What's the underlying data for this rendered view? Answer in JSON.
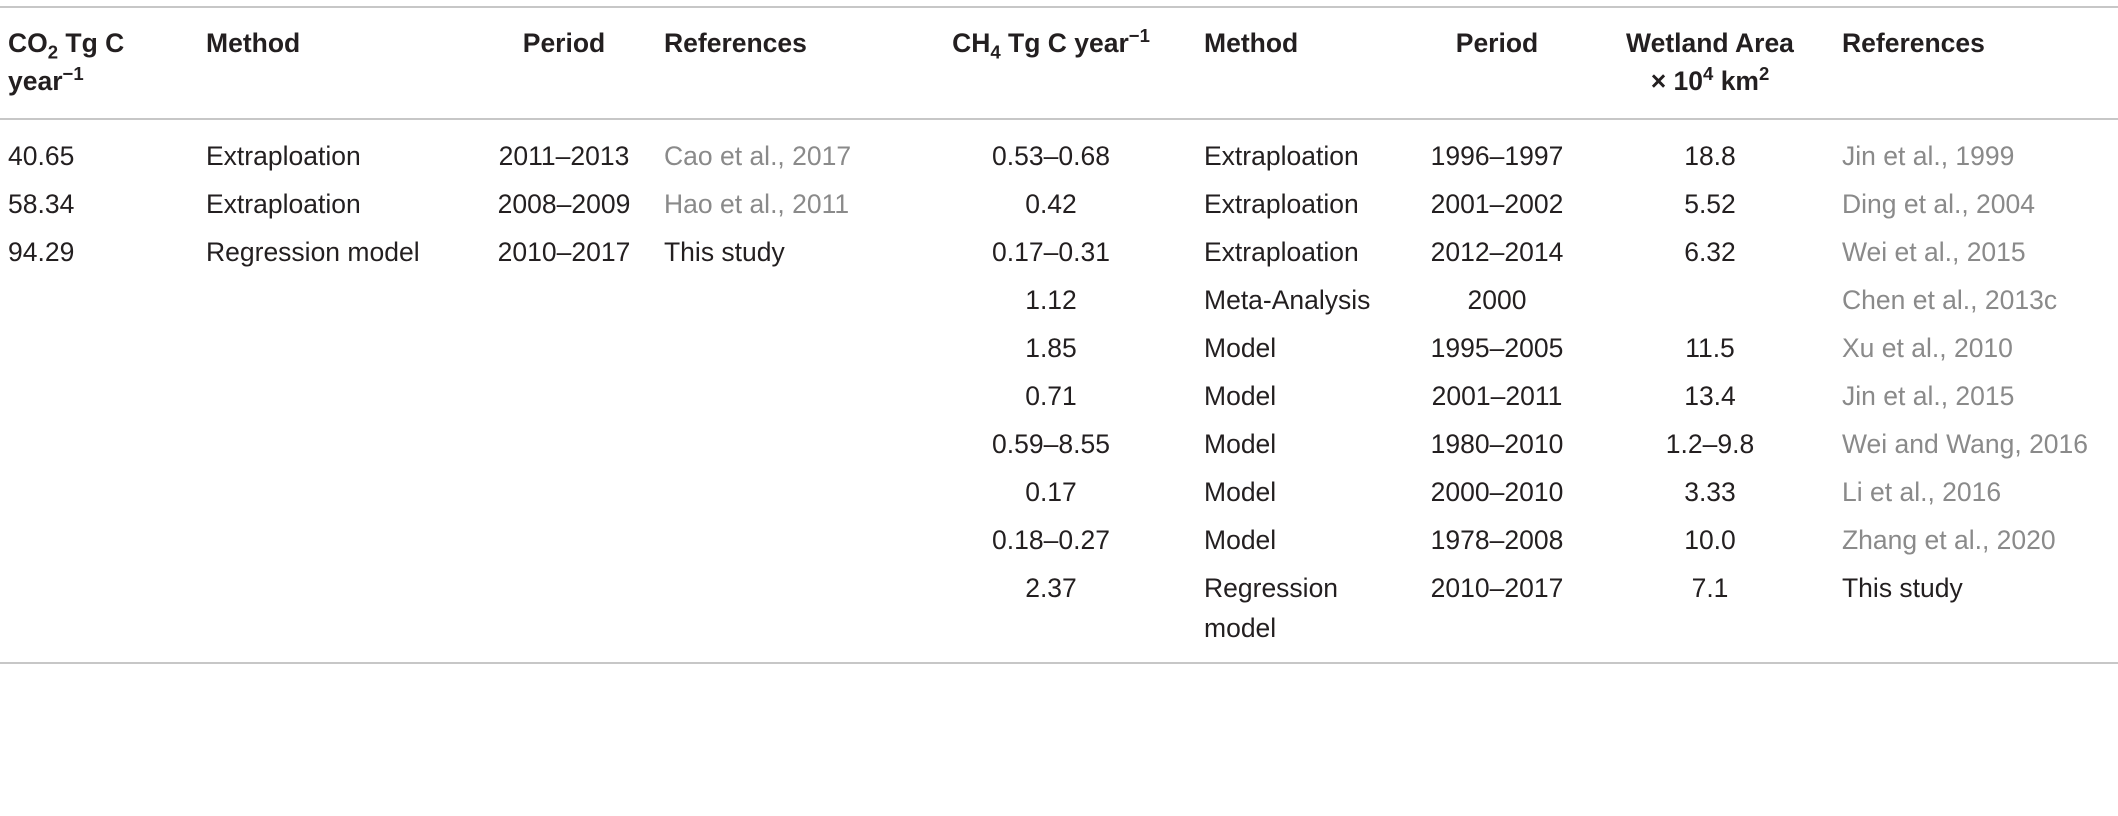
{
  "headers": {
    "co2": {
      "prefix": "CO",
      "sub": "2",
      "mid": " Tg C year",
      "sup": "−1"
    },
    "method1": "Method",
    "period1": "Period",
    "refs1": "References",
    "ch4": {
      "prefix": "CH",
      "sub": "4",
      "mid": " Tg C year",
      "sup": "−1"
    },
    "method2": "Method",
    "period2": "Period",
    "area": {
      "line1": "Wetland Area",
      "line2a": "× 10",
      "sup1": "4",
      "line2b": " km",
      "sup2": "2"
    },
    "refs2": "References"
  },
  "rows": [
    {
      "co2": "40.65",
      "method1": "Extraploation",
      "period1": "2011–2013",
      "refs1": "Cao et al., 2017",
      "ch4": "0.53–0.68",
      "method2": "Extraploation",
      "period2": "1996–1997",
      "area": "18.8",
      "refs2": "Jin et al., 1999"
    },
    {
      "co2": "58.34",
      "method1": "Extraploation",
      "period1": "2008–2009",
      "refs1": "Hao et al., 2011",
      "ch4": "0.42",
      "method2": "Extraploation",
      "period2": "2001–2002",
      "area": "5.52",
      "refs2": "Ding et al., 2004"
    },
    {
      "co2": "94.29",
      "method1": "Regression model",
      "period1": "2010–2017",
      "refs1": "This study",
      "ch4": "0.17–0.31",
      "method2": "Extraploation",
      "period2": "2012–2014",
      "area": "6.32",
      "refs2": "Wei et al., 2015"
    },
    {
      "co2": "",
      "method1": "",
      "period1": "",
      "refs1": "",
      "ch4": "1.12",
      "method2": "Meta-Analysis",
      "period2": "2000",
      "area": "",
      "refs2": "Chen et al., 2013c"
    },
    {
      "co2": "",
      "method1": "",
      "period1": "",
      "refs1": "",
      "ch4": "1.85",
      "method2": "Model",
      "period2": "1995–2005",
      "area": "11.5",
      "refs2": "Xu et al., 2010"
    },
    {
      "co2": "",
      "method1": "",
      "period1": "",
      "refs1": "",
      "ch4": "0.71",
      "method2": "Model",
      "period2": "2001–2011",
      "area": "13.4",
      "refs2": "Jin et al., 2015"
    },
    {
      "co2": "",
      "method1": "",
      "period1": "",
      "refs1": "",
      "ch4": "0.59–8.55",
      "method2": "Model",
      "period2": "1980–2010",
      "area": "1.2–9.8",
      "refs2": "Wei and Wang, 2016"
    },
    {
      "co2": "",
      "method1": "",
      "period1": "",
      "refs1": "",
      "ch4": "0.17",
      "method2": "Model",
      "period2": "2000–2010",
      "area": "3.33",
      "refs2": "Li et al., 2016"
    },
    {
      "co2": "",
      "method1": "",
      "period1": "",
      "refs1": "",
      "ch4": "0.18–0.27",
      "method2": "Model",
      "period2": "1978–2008",
      "area": "10.0",
      "refs2": "Zhang et al., 2020"
    },
    {
      "co2": "",
      "method1": "",
      "period1": "",
      "refs1": "",
      "ch4": "2.37",
      "method2": "Regression model",
      "period2": "2010–2017",
      "area": "7.1",
      "refs2": "This study"
    }
  ],
  "colors": {
    "text": "#231f20",
    "reference_link": "#8a8a8a",
    "rule": "#c7c7c7"
  }
}
